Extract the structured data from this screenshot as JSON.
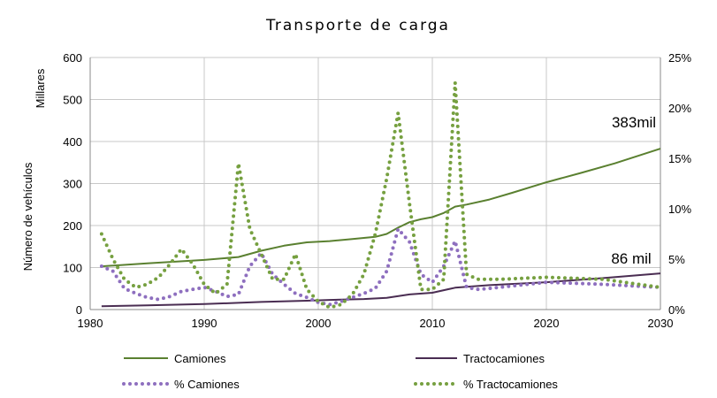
{
  "chart_data": {
    "type": "line",
    "title": "Transporte de carga",
    "ylabel": "Número de vehículos",
    "yunit_label": "Millares",
    "xlim": [
      1980,
      2030
    ],
    "ylim": [
      0,
      600
    ],
    "y2lim": [
      0,
      25
    ],
    "x_ticks": [
      "1980",
      "1990",
      "2000",
      "2010",
      "2020",
      "2030"
    ],
    "y_ticks": [
      "0",
      "100",
      "200",
      "300",
      "400",
      "500",
      "600"
    ],
    "y2_ticks": [
      "0%",
      "5%",
      "10%",
      "15%",
      "20%",
      "25%"
    ],
    "annotations": {
      "camiones_end": "383mil",
      "tracto_end": "86 mil"
    },
    "colors": {
      "camiones": "#5a8030",
      "tractocamiones": "#4a2d52",
      "pct_camiones": "#8e6fbf",
      "pct_tracto": "#76a040"
    },
    "series": [
      {
        "name": "Camiones",
        "axis": "left",
        "style": "solid",
        "x": [
          1981,
          1985,
          1990,
          1993,
          1995,
          1997,
          1999,
          2001,
          2003,
          2005,
          2006,
          2007,
          2008,
          2009,
          2010,
          2011,
          2012,
          2013,
          2015,
          2017,
          2020,
          2023,
          2026,
          2030
        ],
        "values": [
          103,
          110,
          118,
          125,
          140,
          152,
          160,
          163,
          168,
          173,
          180,
          195,
          208,
          215,
          220,
          230,
          245,
          250,
          262,
          278,
          303,
          325,
          348,
          383
        ]
      },
      {
        "name": "Tractocamiones",
        "axis": "left",
        "style": "solid",
        "x": [
          1981,
          1985,
          1990,
          1993,
          1995,
          1999,
          2001,
          2004,
          2006,
          2008,
          2010,
          2012,
          2015,
          2020,
          2025,
          2030
        ],
        "values": [
          8,
          10,
          13,
          16,
          18,
          21,
          23,
          25,
          28,
          36,
          40,
          52,
          58,
          65,
          75,
          86
        ]
      },
      {
        "name": "% Camiones",
        "axis": "right",
        "style": "dotted",
        "x": [
          1981,
          1982,
          1983,
          1984,
          1985,
          1986,
          1987,
          1988,
          1989,
          1990,
          1991,
          1992,
          1993,
          1994,
          1995,
          1996,
          1997,
          1998,
          1999,
          2000,
          2001,
          2002,
          2003,
          2004,
          2005,
          2006,
          2007,
          2008,
          2009,
          2010,
          2011,
          2012,
          2013,
          2014,
          2015,
          2020,
          2025,
          2030
        ],
        "values": [
          4.3,
          3.8,
          2.1,
          1.6,
          1.2,
          1.0,
          1.3,
          1.8,
          2.0,
          2.2,
          1.8,
          1.3,
          1.5,
          4.3,
          5.6,
          3.5,
          2.5,
          1.6,
          1.2,
          0.7,
          0.5,
          0.8,
          1.2,
          1.6,
          2.1,
          3.8,
          8.0,
          6.7,
          3.5,
          2.7,
          4.3,
          6.8,
          2.2,
          2.0,
          2.1,
          2.7,
          2.5,
          2.2
        ]
      },
      {
        "name": "% Tractocamiones",
        "axis": "right",
        "style": "dotted",
        "x": [
          1981,
          1982,
          1983,
          1984,
          1985,
          1986,
          1987,
          1988,
          1989,
          1990,
          1991,
          1992,
          1993,
          1994,
          1995,
          1996,
          1997,
          1998,
          1999,
          2000,
          2001,
          2002,
          2003,
          2004,
          2005,
          2006,
          2007,
          2008,
          2009,
          2010,
          2011,
          2012,
          2013,
          2014,
          2016,
          2020,
          2025,
          2030
        ],
        "values": [
          7.5,
          5.0,
          3.0,
          2.2,
          2.5,
          3.2,
          4.5,
          6.0,
          4.5,
          2.5,
          1.6,
          2.5,
          14.5,
          8.0,
          5.5,
          3.0,
          3.0,
          5.5,
          2.0,
          0.8,
          0.2,
          0.5,
          1.5,
          3.5,
          7.5,
          13.0,
          19.5,
          10.5,
          2.0,
          2.0,
          3.0,
          22.5,
          3.5,
          3.0,
          3.0,
          3.2,
          3.0,
          2.2
        ]
      }
    ]
  }
}
